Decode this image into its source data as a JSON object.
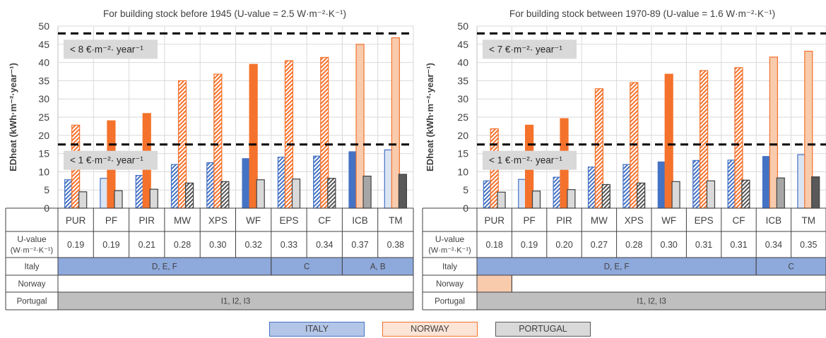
{
  "colors": {
    "italy": "#4472c4",
    "italy_fill": "#8ea9db",
    "norway": "#f4722c",
    "norway_light": "#f8cbad",
    "portugal": "#7f7f7f",
    "portugal_fill": "#d0d0d0",
    "grid": "#d9d9d9",
    "label_box": "#d9d9d9"
  },
  "legend": {
    "italy": "ITALY",
    "norway": "NORWAY",
    "portugal": "PORTUGAL"
  },
  "chart_data": [
    {
      "type": "bar",
      "title": "For building stock before 1945 (U-value = 2.5 W·m⁻²·K⁻¹)",
      "ylabel": "EDheat (kWh·m⁻²·year⁻¹)",
      "ylim": [
        0,
        50
      ],
      "yticks": [
        0,
        5,
        10,
        15,
        20,
        25,
        30,
        35,
        40,
        45,
        50
      ],
      "grid": true,
      "categories": [
        "PUR",
        "PF",
        "PIR",
        "MW",
        "XPS",
        "WF",
        "EPS",
        "CF",
        "ICB",
        "TM"
      ],
      "series": [
        {
          "name": "ITALY",
          "values": [
            7.8,
            8.2,
            9.0,
            12.0,
            12.5,
            13.6,
            14.0,
            14.3,
            15.5,
            16.0
          ]
        },
        {
          "name": "NORWAY",
          "values": [
            22.8,
            24.0,
            26.0,
            35.0,
            36.8,
            39.5,
            40.5,
            41.4,
            45.0,
            46.8
          ]
        },
        {
          "name": "PORTUGAL",
          "values": [
            4.5,
            4.8,
            5.2,
            6.9,
            7.3,
            7.8,
            8.0,
            8.2,
            8.8,
            9.3
          ]
        }
      ],
      "thresholds": [
        {
          "value": 48,
          "label": "< 8 €·m⁻²· year⁻¹"
        },
        {
          "value": 17.5,
          "label": "< 1 €·m⁻²· year⁻¹"
        }
      ],
      "table": {
        "uvalue_label": "U-value",
        "uvalue_unit": "(W·m⁻²·K⁻¹)",
        "uvalues": [
          "0.19",
          "0.19",
          "0.21",
          "0.28",
          "0.30",
          "0.32",
          "0.33",
          "0.34",
          "0.37",
          "0.38"
        ],
        "rows": [
          {
            "country": "Italy",
            "segments": [
              {
                "label": "D, E, F",
                "span": 6,
                "fill": "italy"
              },
              {
                "label": "C",
                "span": 2,
                "fill": "italy"
              },
              {
                "label": "A, B",
                "span": 2,
                "fill": "italy"
              }
            ]
          },
          {
            "country": "Norway",
            "segments": [
              {
                "label": "",
                "span": 10,
                "fill": "none"
              }
            ]
          },
          {
            "country": "Portugal",
            "segments": [
              {
                "label": "I1, I2, I3",
                "span": 10,
                "fill": "portugal"
              }
            ]
          }
        ]
      }
    },
    {
      "type": "bar",
      "title": "For building stock between 1970-89 (U-value = 1.6 W·m⁻²·K⁻¹)",
      "ylabel": "EDheat (kWh·m⁻²·year⁻¹)",
      "ylim": [
        0,
        50
      ],
      "yticks": [
        0,
        5,
        10,
        15,
        20,
        25,
        30,
        35,
        40,
        45,
        50
      ],
      "grid": true,
      "categories": [
        "PUR",
        "PF",
        "PIR",
        "MW",
        "XPS",
        "WF",
        "EPS",
        "CF",
        "ICB",
        "TM"
      ],
      "series": [
        {
          "name": "ITALY",
          "values": [
            7.5,
            7.9,
            8.5,
            11.3,
            12.0,
            12.7,
            13.1,
            13.2,
            14.2,
            14.7
          ]
        },
        {
          "name": "NORWAY",
          "values": [
            21.8,
            22.8,
            24.6,
            32.8,
            34.5,
            36.8,
            37.8,
            38.6,
            41.5,
            43.1
          ]
        },
        {
          "name": "PORTUGAL",
          "values": [
            4.4,
            4.7,
            5.1,
            6.5,
            6.9,
            7.3,
            7.5,
            7.7,
            8.3,
            8.6
          ]
        }
      ],
      "thresholds": [
        {
          "value": 48,
          "label": "< 7 €·m⁻²· year⁻¹"
        },
        {
          "value": 17.5,
          "label": "< 1 €·m⁻²· year⁻¹"
        }
      ],
      "table": {
        "uvalue_label": "U-value",
        "uvalue_unit": "(W·m⁻²·K⁻¹)",
        "uvalues": [
          "0.18",
          "0.19",
          "0.20",
          "0.27",
          "0.28",
          "0.30",
          "0.31",
          "0.31",
          "0.34",
          "0.35"
        ],
        "rows": [
          {
            "country": "Italy",
            "segments": [
              {
                "label": "D, E, F",
                "span": 8,
                "fill": "italy"
              },
              {
                "label": "C",
                "span": 2,
                "fill": "italy"
              }
            ]
          },
          {
            "country": "Norway",
            "segments": [
              {
                "label": "",
                "span": 1,
                "fill": "norway"
              },
              {
                "label": "",
                "span": 9,
                "fill": "none"
              }
            ]
          },
          {
            "country": "Portugal",
            "segments": [
              {
                "label": "I1, I2, I3",
                "span": 10,
                "fill": "portugal"
              }
            ]
          }
        ]
      }
    }
  ]
}
